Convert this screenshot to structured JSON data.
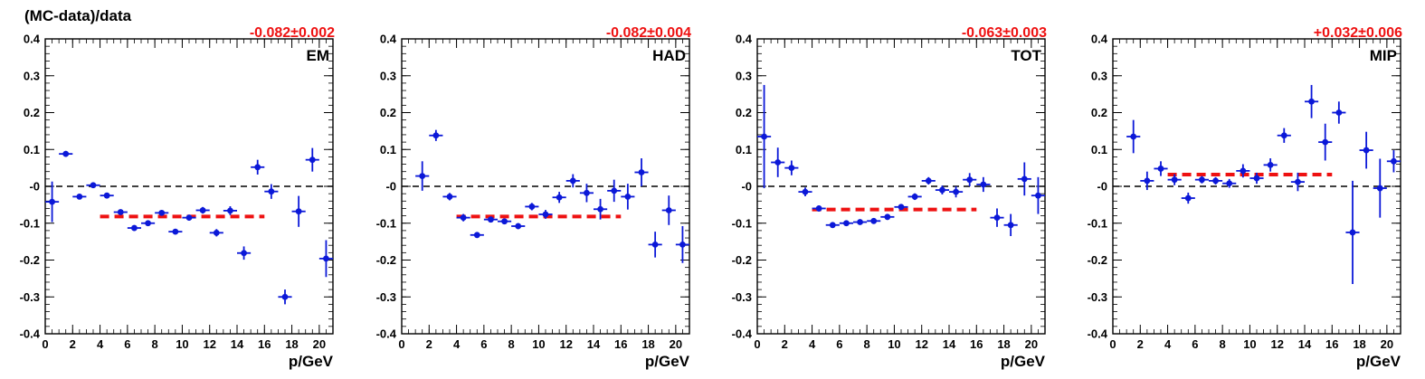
{
  "y_axis_title": "(MC-data)/data",
  "colors": {
    "points": "#0b18d8",
    "fit": "#ee1111",
    "zero_line": "#000000",
    "frame": "#000000"
  },
  "chart_data": [
    {
      "type": "scatter",
      "name": "EM",
      "fit_label": "-0.082±0.002",
      "fit_value": -0.082,
      "fit_range": [
        4,
        16
      ],
      "xlabel": "p/GeV",
      "xlim": [
        0,
        21
      ],
      "ylim": [
        -0.4,
        0.4
      ],
      "x_ticks": [
        0,
        2,
        4,
        6,
        8,
        10,
        12,
        14,
        16,
        18,
        20
      ],
      "y_ticks": [
        -0.4,
        -0.3,
        -0.2,
        -0.1,
        0,
        0.1,
        0.2,
        0.3,
        0.4
      ],
      "y_tick_labels": [
        "-0.4",
        "-0.3",
        "-0.2",
        "-0.1",
        "-0",
        "0.1",
        "0.2",
        "0.3",
        "0.4"
      ],
      "zero_line": true,
      "points": [
        {
          "x": 0.5,
          "y": -0.042,
          "yerr": 0.055
        },
        {
          "x": 1.5,
          "y": 0.088,
          "yerr": 0.008
        },
        {
          "x": 2.5,
          "y": -0.028,
          "yerr": 0.005
        },
        {
          "x": 3.5,
          "y": 0.003,
          "yerr": 0.004
        },
        {
          "x": 4.5,
          "y": -0.025,
          "yerr": 0.005
        },
        {
          "x": 5.5,
          "y": -0.07,
          "yerr": 0.006
        },
        {
          "x": 6.5,
          "y": -0.113,
          "yerr": 0.006
        },
        {
          "x": 7.5,
          "y": -0.1,
          "yerr": 0.007
        },
        {
          "x": 8.5,
          "y": -0.072,
          "yerr": 0.007
        },
        {
          "x": 9.5,
          "y": -0.123,
          "yerr": 0.007
        },
        {
          "x": 10.5,
          "y": -0.085,
          "yerr": 0.008
        },
        {
          "x": 11.5,
          "y": -0.065,
          "yerr": 0.009
        },
        {
          "x": 12.5,
          "y": -0.126,
          "yerr": 0.01
        },
        {
          "x": 13.5,
          "y": -0.066,
          "yerr": 0.012
        },
        {
          "x": 14.5,
          "y": -0.181,
          "yerr": 0.018
        },
        {
          "x": 15.5,
          "y": 0.052,
          "yerr": 0.02
        },
        {
          "x": 16.5,
          "y": -0.014,
          "yerr": 0.02
        },
        {
          "x": 17.5,
          "y": -0.3,
          "yerr": 0.02
        },
        {
          "x": 18.5,
          "y": -0.068,
          "yerr": 0.042
        },
        {
          "x": 19.5,
          "y": 0.072,
          "yerr": 0.032
        },
        {
          "x": 20.5,
          "y": -0.196,
          "yerr": 0.05
        }
      ]
    },
    {
      "type": "scatter",
      "name": "HAD",
      "fit_label": "-0.082±0.004",
      "fit_value": -0.082,
      "fit_range": [
        4,
        16
      ],
      "xlabel": "p/GeV",
      "xlim": [
        0,
        21
      ],
      "ylim": [
        -0.4,
        0.4
      ],
      "x_ticks": [
        0,
        2,
        4,
        6,
        8,
        10,
        12,
        14,
        16,
        18,
        20
      ],
      "y_ticks": [
        -0.4,
        -0.3,
        -0.2,
        -0.1,
        0,
        0.1,
        0.2,
        0.3,
        0.4
      ],
      "y_tick_labels": [
        "-0.4",
        "-0.3",
        "-0.2",
        "-0.1",
        "-0",
        "0.1",
        "0.2",
        "0.3",
        "0.4"
      ],
      "zero_line": true,
      "points": [
        {
          "x": 1.5,
          "y": 0.028,
          "yerr": 0.04
        },
        {
          "x": 2.5,
          "y": 0.138,
          "yerr": 0.015
        },
        {
          "x": 3.5,
          "y": -0.028,
          "yerr": 0.01
        },
        {
          "x": 4.5,
          "y": -0.085,
          "yerr": 0.01
        },
        {
          "x": 5.5,
          "y": -0.132,
          "yerr": 0.008
        },
        {
          "x": 6.5,
          "y": -0.09,
          "yerr": 0.008
        },
        {
          "x": 7.5,
          "y": -0.095,
          "yerr": 0.008
        },
        {
          "x": 8.5,
          "y": -0.108,
          "yerr": 0.008
        },
        {
          "x": 9.5,
          "y": -0.055,
          "yerr": 0.01
        },
        {
          "x": 10.5,
          "y": -0.076,
          "yerr": 0.012
        },
        {
          "x": 11.5,
          "y": -0.03,
          "yerr": 0.015
        },
        {
          "x": 12.5,
          "y": 0.015,
          "yerr": 0.018
        },
        {
          "x": 13.5,
          "y": -0.018,
          "yerr": 0.025
        },
        {
          "x": 14.5,
          "y": -0.062,
          "yerr": 0.028
        },
        {
          "x": 15.5,
          "y": -0.012,
          "yerr": 0.03
        },
        {
          "x": 16.5,
          "y": -0.028,
          "yerr": 0.035
        },
        {
          "x": 17.5,
          "y": 0.038,
          "yerr": 0.038
        },
        {
          "x": 18.5,
          "y": -0.158,
          "yerr": 0.035
        },
        {
          "x": 19.5,
          "y": -0.065,
          "yerr": 0.04
        },
        {
          "x": 20.5,
          "y": -0.158,
          "yerr": 0.05
        }
      ]
    },
    {
      "type": "scatter",
      "name": "TOT",
      "fit_label": "-0.063±0.003",
      "fit_value": -0.063,
      "fit_range": [
        4,
        16
      ],
      "xlabel": "p/GeV",
      "xlim": [
        0,
        21
      ],
      "ylim": [
        -0.4,
        0.4
      ],
      "x_ticks": [
        0,
        2,
        4,
        6,
        8,
        10,
        12,
        14,
        16,
        18,
        20
      ],
      "y_ticks": [
        -0.4,
        -0.3,
        -0.2,
        -0.1,
        0,
        0.1,
        0.2,
        0.3,
        0.4
      ],
      "y_tick_labels": [
        "-0.4",
        "-0.3",
        "-0.2",
        "-0.1",
        "-0",
        "0.1",
        "0.2",
        "0.3",
        "0.4"
      ],
      "zero_line": true,
      "points": [
        {
          "x": 0.5,
          "y": 0.135,
          "yerr": 0.14
        },
        {
          "x": 1.5,
          "y": 0.065,
          "yerr": 0.04
        },
        {
          "x": 2.5,
          "y": 0.05,
          "yerr": 0.02
        },
        {
          "x": 3.5,
          "y": -0.015,
          "yerr": 0.012
        },
        {
          "x": 4.5,
          "y": -0.06,
          "yerr": 0.008
        },
        {
          "x": 5.5,
          "y": -0.105,
          "yerr": 0.006
        },
        {
          "x": 6.5,
          "y": -0.1,
          "yerr": 0.006
        },
        {
          "x": 7.5,
          "y": -0.097,
          "yerr": 0.006
        },
        {
          "x": 8.5,
          "y": -0.094,
          "yerr": 0.006
        },
        {
          "x": 9.5,
          "y": -0.083,
          "yerr": 0.008
        },
        {
          "x": 10.5,
          "y": -0.056,
          "yerr": 0.008
        },
        {
          "x": 11.5,
          "y": -0.028,
          "yerr": 0.009
        },
        {
          "x": 12.5,
          "y": 0.015,
          "yerr": 0.01
        },
        {
          "x": 13.5,
          "y": -0.01,
          "yerr": 0.012
        },
        {
          "x": 14.5,
          "y": -0.015,
          "yerr": 0.015
        },
        {
          "x": 15.5,
          "y": 0.018,
          "yerr": 0.018
        },
        {
          "x": 16.5,
          "y": 0.005,
          "yerr": 0.02
        },
        {
          "x": 17.5,
          "y": -0.085,
          "yerr": 0.025
        },
        {
          "x": 18.5,
          "y": -0.105,
          "yerr": 0.03
        },
        {
          "x": 19.5,
          "y": 0.02,
          "yerr": 0.045
        },
        {
          "x": 20.5,
          "y": -0.025,
          "yerr": 0.05
        }
      ]
    },
    {
      "type": "scatter",
      "name": "MIP",
      "fit_label": "+0.032±0.006",
      "fit_value": 0.032,
      "fit_range": [
        4,
        16
      ],
      "xlabel": "p/GeV",
      "xlim": [
        0,
        21
      ],
      "ylim": [
        -0.4,
        0.4
      ],
      "x_ticks": [
        0,
        2,
        4,
        6,
        8,
        10,
        12,
        14,
        16,
        18,
        20
      ],
      "y_ticks": [
        -0.4,
        -0.3,
        -0.2,
        -0.1,
        0,
        0.1,
        0.2,
        0.3,
        0.4
      ],
      "y_tick_labels": [
        "-0.4",
        "-0.3",
        "-0.2",
        "-0.1",
        "-0",
        "0.1",
        "0.2",
        "0.3",
        "0.4"
      ],
      "zero_line": true,
      "points": [
        {
          "x": 1.5,
          "y": 0.135,
          "yerr": 0.045
        },
        {
          "x": 2.5,
          "y": 0.015,
          "yerr": 0.025
        },
        {
          "x": 3.5,
          "y": 0.048,
          "yerr": 0.02
        },
        {
          "x": 4.5,
          "y": 0.018,
          "yerr": 0.015
        },
        {
          "x": 5.5,
          "y": -0.032,
          "yerr": 0.015
        },
        {
          "x": 6.5,
          "y": 0.018,
          "yerr": 0.01
        },
        {
          "x": 7.5,
          "y": 0.015,
          "yerr": 0.01
        },
        {
          "x": 8.5,
          "y": 0.008,
          "yerr": 0.012
        },
        {
          "x": 9.5,
          "y": 0.042,
          "yerr": 0.018
        },
        {
          "x": 10.5,
          "y": 0.022,
          "yerr": 0.015
        },
        {
          "x": 11.5,
          "y": 0.058,
          "yerr": 0.018
        },
        {
          "x": 12.5,
          "y": 0.138,
          "yerr": 0.02
        },
        {
          "x": 13.5,
          "y": 0.012,
          "yerr": 0.025
        },
        {
          "x": 14.5,
          "y": 0.23,
          "yerr": 0.045
        },
        {
          "x": 15.5,
          "y": 0.12,
          "yerr": 0.05
        },
        {
          "x": 16.5,
          "y": 0.2,
          "yerr": 0.03
        },
        {
          "x": 17.5,
          "y": -0.125,
          "yerr": 0.14
        },
        {
          "x": 18.5,
          "y": 0.098,
          "yerr": 0.05
        },
        {
          "x": 19.5,
          "y": -0.005,
          "yerr": 0.08
        },
        {
          "x": 20.5,
          "y": 0.068,
          "yerr": 0.03
        }
      ]
    }
  ]
}
